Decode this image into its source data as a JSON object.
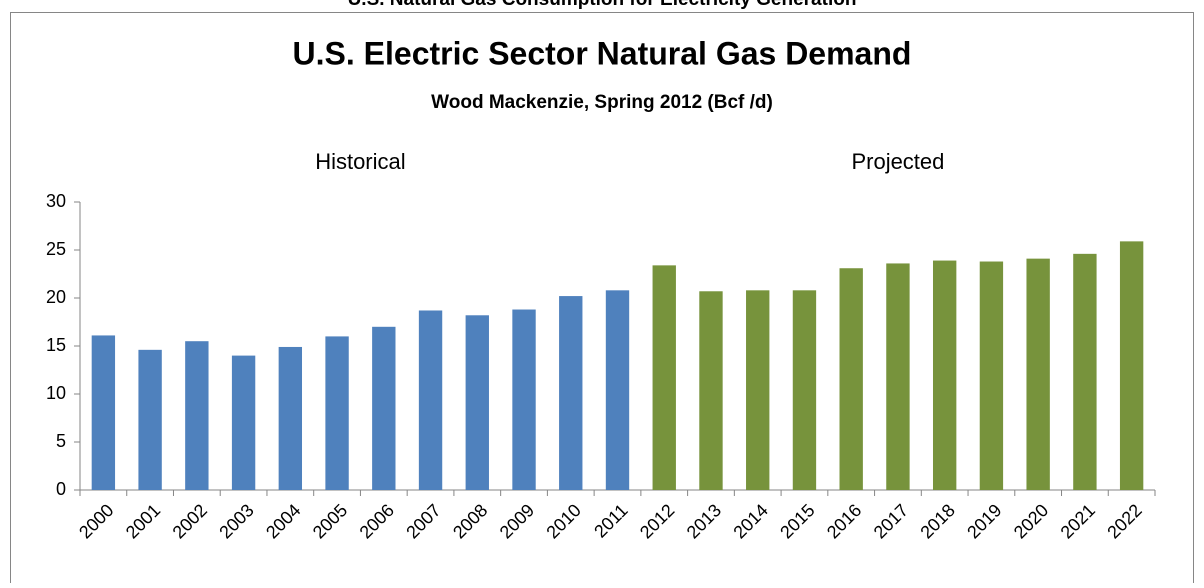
{
  "header": "U.S. Natural Gas Consumption for Electricity Generation",
  "chart_data": {
    "type": "bar",
    "title": "U.S. Electric Sector Natural Gas Demand",
    "subtitle": "Wood Mackenzie, Spring 2012 (Bcf /d)",
    "categories": [
      "2000",
      "2001",
      "2002",
      "2003",
      "2004",
      "2005",
      "2006",
      "2007",
      "2008",
      "2009",
      "2010",
      "2011",
      "2012",
      "2013",
      "2014",
      "2015",
      "2016",
      "2017",
      "2018",
      "2019",
      "2020",
      "2021",
      "2022"
    ],
    "series": [
      {
        "name": "Historical",
        "color": "#4f81bd",
        "values": [
          16.1,
          14.6,
          15.5,
          14.0,
          14.9,
          16.0,
          17.0,
          18.7,
          18.2,
          18.8,
          20.2,
          20.8,
          null,
          null,
          null,
          null,
          null,
          null,
          null,
          null,
          null,
          null,
          null
        ]
      },
      {
        "name": "Projected",
        "color": "#77933c",
        "values": [
          null,
          null,
          null,
          null,
          null,
          null,
          null,
          null,
          null,
          null,
          null,
          null,
          23.4,
          20.7,
          20.8,
          20.8,
          23.1,
          23.6,
          23.9,
          23.8,
          24.1,
          24.6,
          25.9
        ]
      }
    ],
    "ylim": [
      0,
      30
    ],
    "yticks": [
      0,
      5,
      10,
      15,
      20,
      25,
      30
    ],
    "grid": false
  }
}
